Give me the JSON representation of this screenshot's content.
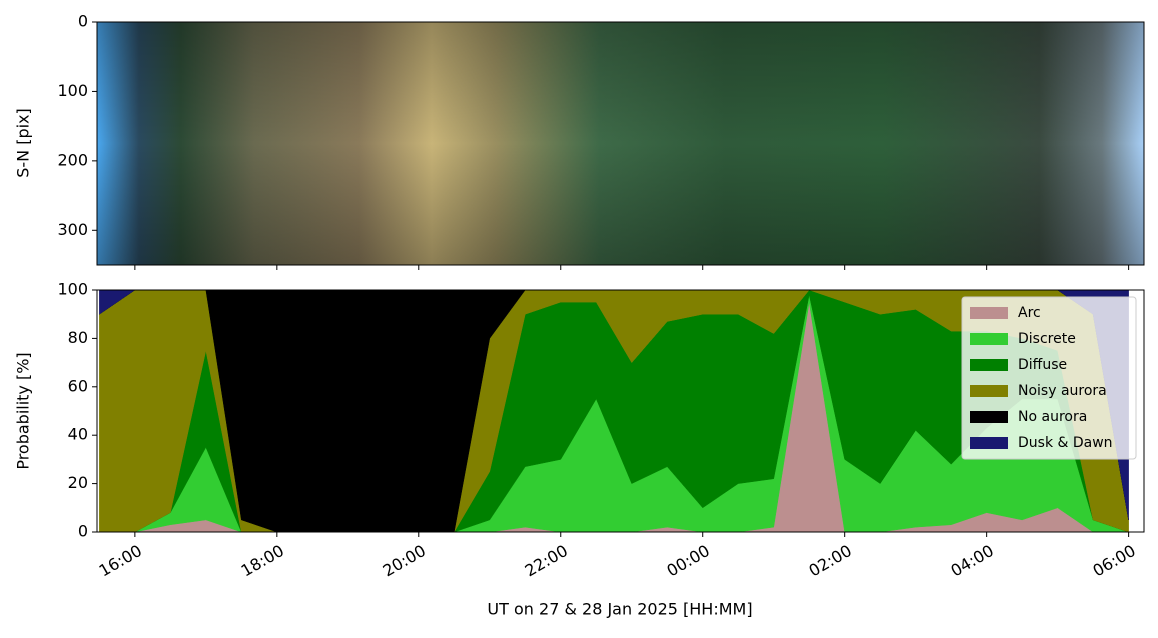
{
  "chart_data": [
    {
      "type": "image",
      "ylabel": "S-N [pix]",
      "ylim": [
        350,
        0
      ],
      "yticks": [
        0,
        100,
        200,
        300
      ]
    },
    {
      "type": "stacked_area",
      "xlabel": "UT on 27 & 28 Jan 2025 [HH:MM]",
      "ylabel": "Probability [%]",
      "xlim": [
        "2025-01-27T15:28",
        "2025-01-28T06:13"
      ],
      "xticks": [
        {
          "value": "2025-01-27T16:00",
          "label": "16:00"
        },
        {
          "value": "2025-01-27T18:00",
          "label": "18:00"
        },
        {
          "value": "2025-01-27T20:00",
          "label": "20:00"
        },
        {
          "value": "2025-01-27T22:00",
          "label": "22:00"
        },
        {
          "value": "2025-01-28T00:00",
          "label": "00:00"
        },
        {
          "value": "2025-01-28T02:00",
          "label": "02:00"
        },
        {
          "value": "2025-01-28T04:00",
          "label": "04:00"
        },
        {
          "value": "2025-01-28T06:00",
          "label": "06:00"
        }
      ],
      "ylim": [
        0,
        100
      ],
      "yticks": [
        0,
        20,
        40,
        60,
        80,
        100
      ],
      "legend": "upper right",
      "x": [
        "2025-01-27T15:30",
        "2025-01-27T16:00",
        "2025-01-27T16:30",
        "2025-01-27T17:00",
        "2025-01-27T17:30",
        "2025-01-27T18:00",
        "2025-01-27T18:30",
        "2025-01-27T19:00",
        "2025-01-27T19:30",
        "2025-01-27T20:00",
        "2025-01-27T20:30",
        "2025-01-27T21:00",
        "2025-01-27T21:30",
        "2025-01-27T22:00",
        "2025-01-27T22:30",
        "2025-01-27T23:00",
        "2025-01-27T23:30",
        "2025-01-28T00:00",
        "2025-01-28T00:30",
        "2025-01-28T01:00",
        "2025-01-28T01:30",
        "2025-01-28T02:00",
        "2025-01-28T02:30",
        "2025-01-28T03:00",
        "2025-01-28T03:30",
        "2025-01-28T04:00",
        "2025-01-28T04:30",
        "2025-01-28T05:00",
        "2025-01-28T05:30",
        "2025-01-28T06:00"
      ],
      "series": [
        {
          "name": "Arc",
          "color": "#bc8f8f",
          "values": [
            0,
            0,
            3,
            5,
            0,
            0,
            0,
            0,
            0,
            0,
            0,
            0,
            2,
            0,
            0,
            0,
            2,
            0,
            0,
            2,
            95,
            0,
            0,
            2,
            3,
            8,
            5,
            10,
            0,
            0
          ]
        },
        {
          "name": "Discrete",
          "color": "#32cd32",
          "values": [
            0,
            0,
            5,
            30,
            0,
            0,
            0,
            0,
            0,
            0,
            0,
            5,
            25,
            30,
            55,
            20,
            25,
            10,
            20,
            20,
            3,
            30,
            20,
            40,
            25,
            35,
            50,
            45,
            5,
            0
          ]
        },
        {
          "name": "Diffuse",
          "color": "#008000",
          "values": [
            0,
            0,
            0,
            40,
            0,
            0,
            0,
            0,
            0,
            0,
            0,
            20,
            63,
            65,
            40,
            50,
            60,
            80,
            70,
            60,
            2,
            65,
            70,
            50,
            55,
            40,
            25,
            20,
            0,
            0
          ]
        },
        {
          "name": "Noisy aurora",
          "color": "#808000",
          "values": [
            90,
            100,
            92,
            25,
            5,
            0,
            0,
            0,
            0,
            0,
            0,
            55,
            10,
            5,
            5,
            30,
            13,
            10,
            10,
            18,
            0,
            5,
            10,
            8,
            17,
            17,
            20,
            25,
            85,
            5
          ]
        },
        {
          "name": "No aurora",
          "color": "#000000",
          "values": [
            0,
            0,
            0,
            0,
            95,
            100,
            100,
            100,
            100,
            100,
            100,
            20,
            0,
            0,
            0,
            0,
            0,
            0,
            0,
            0,
            0,
            0,
            0,
            0,
            0,
            0,
            0,
            0,
            0,
            0
          ]
        },
        {
          "name": "Dusk & Dawn",
          "color": "#191970",
          "values": [
            10,
            0,
            0,
            0,
            0,
            0,
            0,
            0,
            0,
            0,
            0,
            0,
            0,
            0,
            0,
            0,
            0,
            0,
            0,
            0,
            0,
            0,
            0,
            0,
            0,
            0,
            0,
            0,
            10,
            95
          ]
        }
      ]
    }
  ]
}
